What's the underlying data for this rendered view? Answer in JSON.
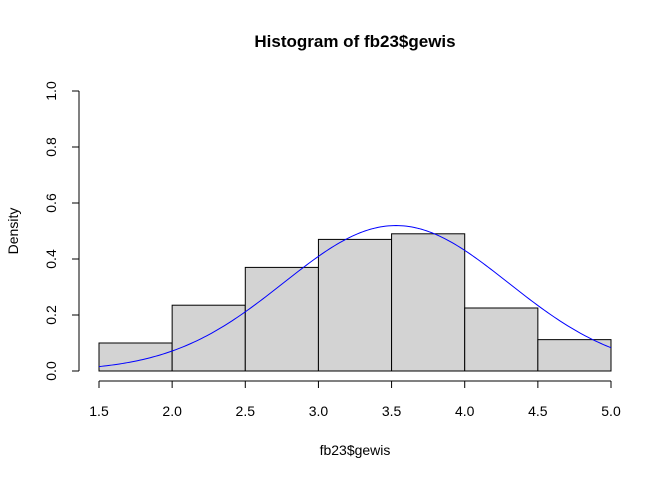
{
  "chart_data": {
    "type": "bar",
    "title": "Histogram of fb23$gewis",
    "xlabel": "fb23$gewis",
    "ylabel": "Density",
    "xlim": [
      1.5,
      5.0
    ],
    "ylim": [
      0.0,
      1.0
    ],
    "x_ticks": [
      "1.5",
      "2.0",
      "2.5",
      "3.0",
      "3.5",
      "4.0",
      "4.5",
      "5.0"
    ],
    "y_ticks": [
      "0.0",
      "0.2",
      "0.4",
      "0.6",
      "0.8",
      "1.0"
    ],
    "grid": false,
    "bins": [
      {
        "start": 1.5,
        "end": 2.0,
        "density": 0.1
      },
      {
        "start": 2.0,
        "end": 2.5,
        "density": 0.235
      },
      {
        "start": 2.5,
        "end": 3.0,
        "density": 0.37
      },
      {
        "start": 3.0,
        "end": 3.5,
        "density": 0.47
      },
      {
        "start": 3.5,
        "end": 4.0,
        "density": 0.49
      },
      {
        "start": 4.0,
        "end": 4.5,
        "density": 0.225
      },
      {
        "start": 4.5,
        "end": 5.0,
        "density": 0.112
      }
    ],
    "curve": {
      "type": "normal-density",
      "mean": 3.53,
      "sd": 0.768,
      "x_range": [
        1.5,
        5.0
      ]
    },
    "colors": {
      "bar_fill": "#d3d3d3",
      "bar_stroke": "#000000",
      "curve": "#0000ff",
      "axis": "#000000",
      "background": "#ffffff"
    }
  }
}
